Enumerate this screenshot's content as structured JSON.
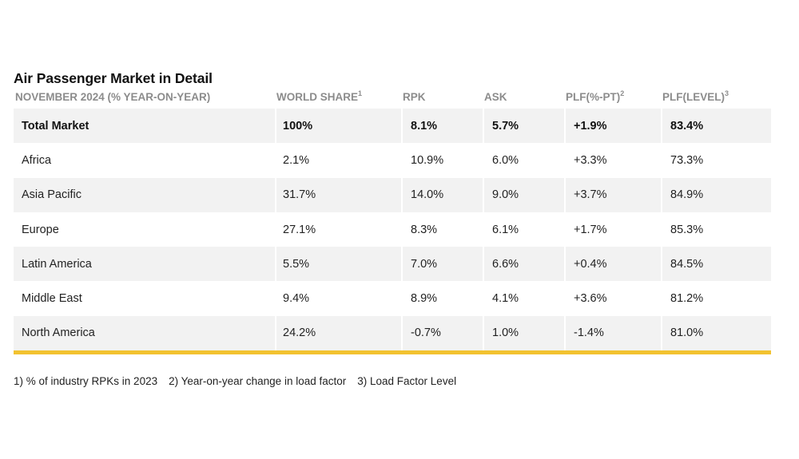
{
  "title": "Air Passenger Market in Detail",
  "headers": [
    {
      "label": "NOVEMBER 2024 (% YEAR-ON-YEAR)",
      "sup": ""
    },
    {
      "label": "WORLD SHARE",
      "sup": "1"
    },
    {
      "label": "RPK",
      "sup": ""
    },
    {
      "label": "ASK",
      "sup": ""
    },
    {
      "label": "PLF(%-PT)",
      "sup": "2"
    },
    {
      "label": "PLF(LEVEL)",
      "sup": "3"
    }
  ],
  "rows": [
    {
      "region": "Total Market",
      "world_share": "100%",
      "rpk": "8.1%",
      "ask": "5.7%",
      "plf_pt": "+1.9%",
      "plf_level": "83.4%"
    },
    {
      "region": "Africa",
      "world_share": "2.1%",
      "rpk": "10.9%",
      "ask": "6.0%",
      "plf_pt": "+3.3%",
      "plf_level": "73.3%"
    },
    {
      "region": "Asia Pacific",
      "world_share": "31.7%",
      "rpk": "14.0%",
      "ask": "9.0%",
      "plf_pt": "+3.7%",
      "plf_level": "84.9%"
    },
    {
      "region": "Europe",
      "world_share": "27.1%",
      "rpk": "8.3%",
      "ask": "6.1%",
      "plf_pt": "+1.7%",
      "plf_level": "85.3%"
    },
    {
      "region": "Latin America",
      "world_share": "5.5%",
      "rpk": "7.0%",
      "ask": "6.6%",
      "plf_pt": "+0.4%",
      "plf_level": "84.5%"
    },
    {
      "region": "Middle East",
      "world_share": "9.4%",
      "rpk": "8.9%",
      "ask": "4.1%",
      "plf_pt": "+3.6%",
      "plf_level": "81.2%"
    },
    {
      "region": "North America",
      "world_share": "24.2%",
      "rpk": "-0.7%",
      "ask": "1.0%",
      "plf_pt": "-1.4%",
      "plf_level": "81.0%"
    }
  ],
  "footnotes": [
    "1) % of industry RPKs in 2023",
    "2) Year-on-year change in load factor",
    "3) Load Factor Level"
  ],
  "colors": {
    "accent_rule": "#f2c230",
    "row_shade": "#f2f2f2",
    "header_text": "#8c8c8c"
  }
}
